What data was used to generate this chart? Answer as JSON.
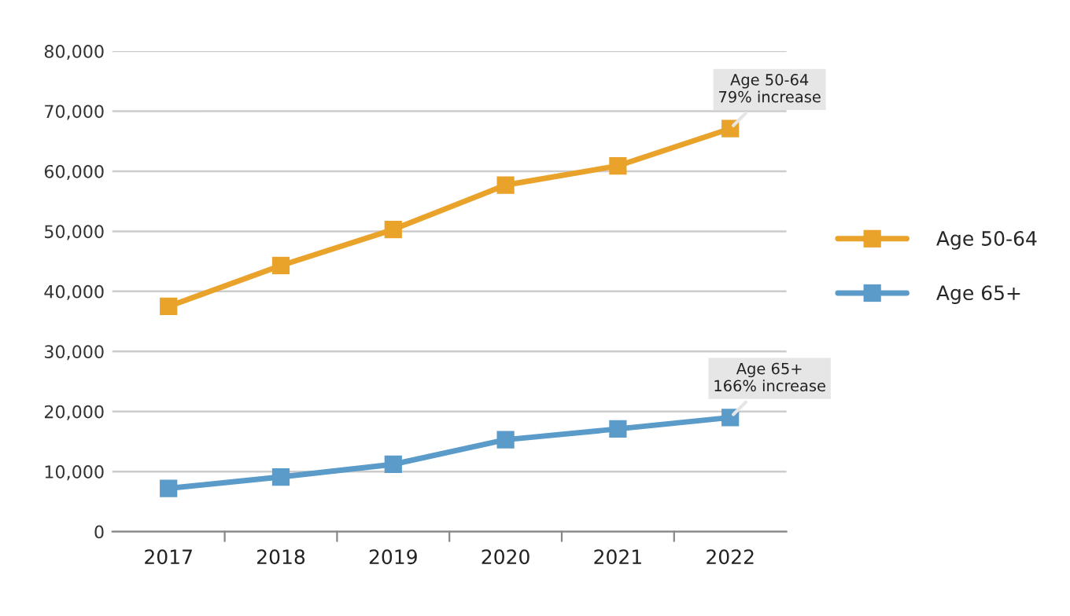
{
  "chart_data": {
    "type": "line",
    "categories": [
      "2017",
      "2018",
      "2019",
      "2020",
      "2021",
      "2022"
    ],
    "series": [
      {
        "name": "Age 50-64",
        "color": "#e9a22a",
        "values": [
          37500,
          44300,
          50300,
          57700,
          60900,
          67100
        ]
      },
      {
        "name": "Age 65+",
        "color": "#5b9bc9",
        "values": [
          7200,
          9100,
          11200,
          15300,
          17100,
          19000
        ]
      }
    ],
    "ylim": [
      0,
      80000
    ],
    "yticks": [
      {
        "value": 0,
        "label": "0"
      },
      {
        "value": 10000,
        "label": "10,000"
      },
      {
        "value": 20000,
        "label": "20,000"
      },
      {
        "value": 30000,
        "label": "30,000"
      },
      {
        "value": 40000,
        "label": "40,000"
      },
      {
        "value": 50000,
        "label": "50,000"
      },
      {
        "value": 60000,
        "label": "60,000"
      },
      {
        "value": 70000,
        "label": "70,000"
      },
      {
        "value": 80000,
        "label": "80,000"
      }
    ],
    "grid": "y",
    "legend": "right",
    "marker": "square",
    "line_style": "solid",
    "annotations": [
      {
        "text": "Age 50-64\n79% increase",
        "x": "2022",
        "y": 67100
      },
      {
        "text": "Age 65+\n166% increase",
        "x": "2022",
        "y": 19000
      }
    ]
  }
}
